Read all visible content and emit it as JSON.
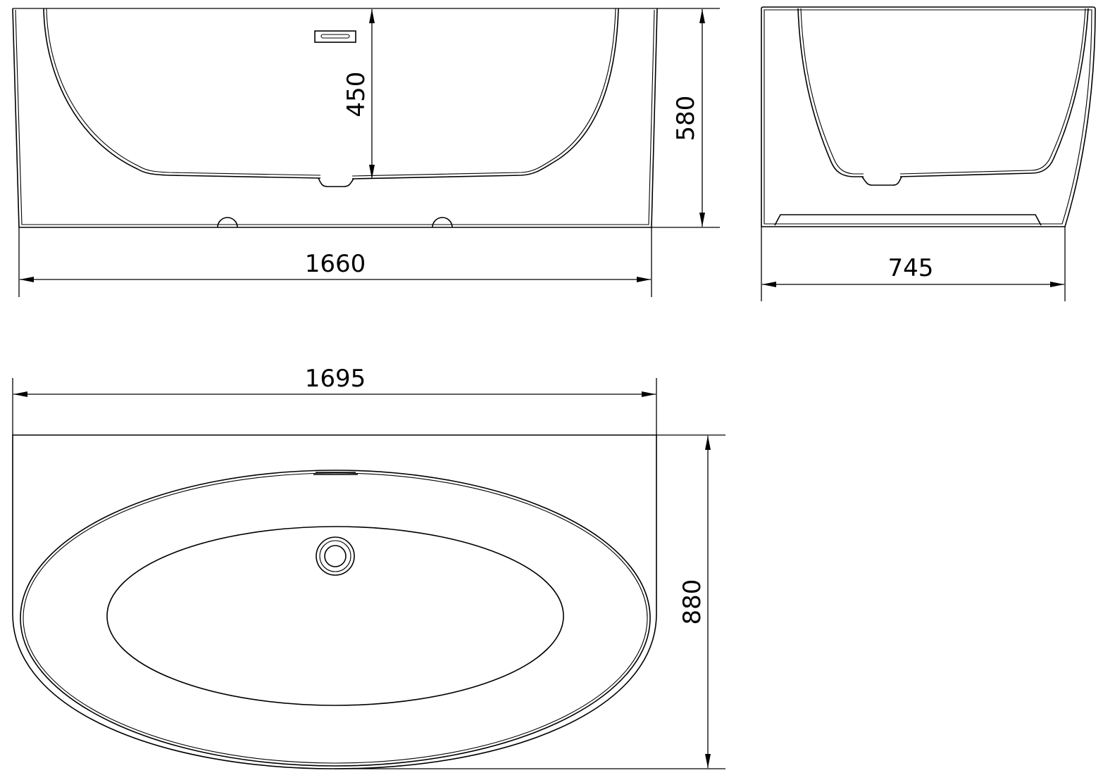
{
  "drawing": {
    "front_view": {
      "length_label": "1660",
      "inner_depth_label": "450",
      "height_label": "580"
    },
    "side_view": {
      "width_label": "745"
    },
    "top_view": {
      "length_label": "1695",
      "width_label": "880"
    },
    "line_color": "#000000",
    "background_color": "#ffffff"
  }
}
